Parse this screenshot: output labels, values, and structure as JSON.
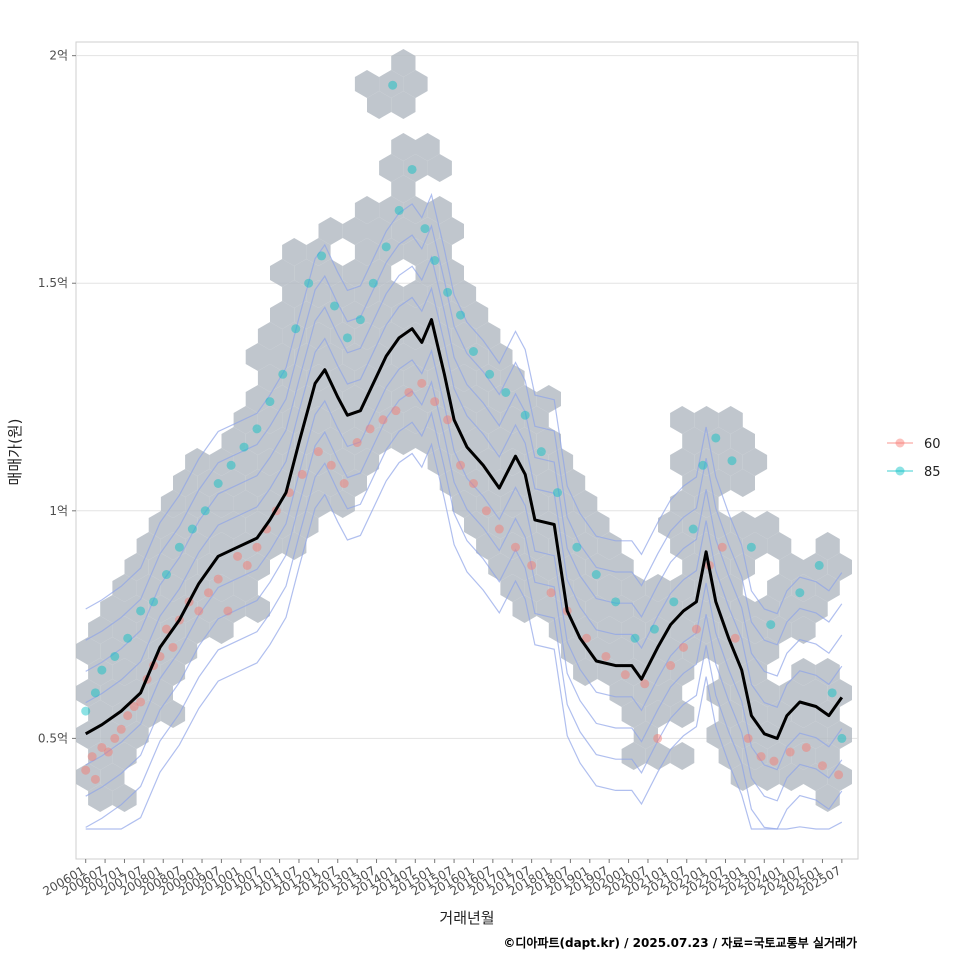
{
  "chart_data": {
    "type": "scatter",
    "xlabel": "거래년월",
    "ylabel": "매매가(원)",
    "caption": "©디아파트(dapt.kr) / 2025.07.23 / 자료=국토교통부 실거래가",
    "x_range": [
      "2005-10",
      "2025-12"
    ],
    "y_range_won": [
      23500000,
      203000000
    ],
    "y_ticks": [
      {
        "value": 50000000,
        "label": "0.5억"
      },
      {
        "value": 100000000,
        "label": "1억"
      },
      {
        "value": 150000000,
        "label": "1.5억"
      },
      {
        "value": 200000000,
        "label": "2억"
      }
    ],
    "x_tick_labels": [
      "200601",
      "200607",
      "200701",
      "200707",
      "200801",
      "200807",
      "200901",
      "200907",
      "201001",
      "201007",
      "201101",
      "201107",
      "201201",
      "201207",
      "201301",
      "201307",
      "201401",
      "201407",
      "201501",
      "201507",
      "201601",
      "201607",
      "201701",
      "201707",
      "201801",
      "201807",
      "201901",
      "201907",
      "202001",
      "202007",
      "202101",
      "202107",
      "202201",
      "202207",
      "202301",
      "202307",
      "202401",
      "202407",
      "202501",
      "202507"
    ],
    "grid": true,
    "legend_position": "right",
    "legend": [
      {
        "name": "60",
        "color": "#F8766D"
      },
      {
        "name": "85",
        "color": "#00BFC4"
      }
    ],
    "series": [
      {
        "name": "60",
        "color": "#F8766D",
        "points": [
          [
            "2006-01",
            43000000
          ],
          [
            "2006-03",
            46000000
          ],
          [
            "2006-04",
            41000000
          ],
          [
            "2006-06",
            48000000
          ],
          [
            "2006-08",
            47000000
          ],
          [
            "2006-10",
            50000000
          ],
          [
            "2006-12",
            52000000
          ],
          [
            "2007-02",
            55000000
          ],
          [
            "2007-04",
            57000000
          ],
          [
            "2007-06",
            58000000
          ],
          [
            "2007-08",
            63000000
          ],
          [
            "2007-10",
            66000000
          ],
          [
            "2007-12",
            68000000
          ],
          [
            "2008-02",
            74000000
          ],
          [
            "2008-04",
            70000000
          ],
          [
            "2008-06",
            76000000
          ],
          [
            "2008-09",
            80000000
          ],
          [
            "2008-12",
            78000000
          ],
          [
            "2009-03",
            82000000
          ],
          [
            "2009-06",
            85000000
          ],
          [
            "2009-09",
            78000000
          ],
          [
            "2009-12",
            90000000
          ],
          [
            "2010-03",
            88000000
          ],
          [
            "2010-06",
            92000000
          ],
          [
            "2010-09",
            96000000
          ],
          [
            "2010-12",
            100000000
          ],
          [
            "2011-04",
            104000000
          ],
          [
            "2011-08",
            108000000
          ],
          [
            "2012-01",
            113000000
          ],
          [
            "2012-05",
            110000000
          ],
          [
            "2012-09",
            106000000
          ],
          [
            "2013-01",
            115000000
          ],
          [
            "2013-05",
            118000000
          ],
          [
            "2013-09",
            120000000
          ],
          [
            "2014-01",
            122000000
          ],
          [
            "2014-05",
            126000000
          ],
          [
            "2014-09",
            128000000
          ],
          [
            "2015-01",
            124000000
          ],
          [
            "2015-05",
            120000000
          ],
          [
            "2015-09",
            110000000
          ],
          [
            "2016-01",
            106000000
          ],
          [
            "2016-05",
            100000000
          ],
          [
            "2016-09",
            96000000
          ],
          [
            "2017-02",
            92000000
          ],
          [
            "2017-07",
            88000000
          ],
          [
            "2018-01",
            82000000
          ],
          [
            "2018-06",
            78000000
          ],
          [
            "2018-12",
            72000000
          ],
          [
            "2019-06",
            68000000
          ],
          [
            "2019-12",
            64000000
          ],
          [
            "2020-06",
            62000000
          ],
          [
            "2020-10",
            50000000
          ],
          [
            "2021-02",
            66000000
          ],
          [
            "2021-06",
            70000000
          ],
          [
            "2021-10",
            74000000
          ],
          [
            "2022-02",
            88000000
          ],
          [
            "2022-06",
            92000000
          ],
          [
            "2022-10",
            72000000
          ],
          [
            "2023-02",
            50000000
          ],
          [
            "2023-06",
            46000000
          ],
          [
            "2023-10",
            45000000
          ],
          [
            "2024-03",
            47000000
          ],
          [
            "2024-08",
            48000000
          ],
          [
            "2025-01",
            44000000
          ],
          [
            "2025-06",
            42000000
          ]
        ]
      },
      {
        "name": "85",
        "color": "#00BFC4",
        "points": [
          [
            "2006-01",
            56000000
          ],
          [
            "2006-04",
            60000000
          ],
          [
            "2006-06",
            65000000
          ],
          [
            "2006-10",
            68000000
          ],
          [
            "2007-02",
            72000000
          ],
          [
            "2007-06",
            78000000
          ],
          [
            "2007-10",
            80000000
          ],
          [
            "2008-02",
            86000000
          ],
          [
            "2008-06",
            92000000
          ],
          [
            "2008-10",
            96000000
          ],
          [
            "2009-02",
            100000000
          ],
          [
            "2009-06",
            106000000
          ],
          [
            "2009-10",
            110000000
          ],
          [
            "2010-02",
            114000000
          ],
          [
            "2010-06",
            118000000
          ],
          [
            "2010-10",
            124000000
          ],
          [
            "2011-02",
            130000000
          ],
          [
            "2011-06",
            140000000
          ],
          [
            "2011-10",
            150000000
          ],
          [
            "2012-02",
            156000000
          ],
          [
            "2012-06",
            145000000
          ],
          [
            "2012-10",
            138000000
          ],
          [
            "2013-02",
            142000000
          ],
          [
            "2013-06",
            150000000
          ],
          [
            "2013-10",
            158000000
          ],
          [
            "2014-02",
            166000000
          ],
          [
            "2014-06",
            175000000
          ],
          [
            "2014-10",
            162000000
          ],
          [
            "2015-01",
            155000000
          ],
          [
            "2015-05",
            148000000
          ],
          [
            "2015-09",
            143000000
          ],
          [
            "2016-01",
            135000000
          ],
          [
            "2016-06",
            130000000
          ],
          [
            "2016-11",
            126000000
          ],
          [
            "2017-05",
            121000000
          ],
          [
            "2017-10",
            113000000
          ],
          [
            "2018-03",
            104000000
          ],
          [
            "2018-09",
            92000000
          ],
          [
            "2019-03",
            86000000
          ],
          [
            "2019-09",
            80000000
          ],
          [
            "2020-03",
            72000000
          ],
          [
            "2020-09",
            74000000
          ],
          [
            "2021-03",
            80000000
          ],
          [
            "2021-09",
            96000000
          ],
          [
            "2021-12",
            110000000
          ],
          [
            "2022-04",
            116000000
          ],
          [
            "2022-09",
            111000000
          ],
          [
            "2023-03",
            92000000
          ],
          [
            "2023-09",
            75000000
          ],
          [
            "2024-06",
            82000000
          ],
          [
            "2024-12",
            88000000
          ],
          [
            "2025-04",
            60000000
          ],
          [
            "2025-07",
            50000000
          ],
          [
            "2013-12",
            193500000
          ]
        ]
      }
    ],
    "trend_line": {
      "color": "#000000",
      "points": [
        [
          "2006-01",
          51000000
        ],
        [
          "2006-06",
          53000000
        ],
        [
          "2006-12",
          56000000
        ],
        [
          "2007-06",
          60000000
        ],
        [
          "2007-12",
          70000000
        ],
        [
          "2008-06",
          76000000
        ],
        [
          "2008-12",
          84000000
        ],
        [
          "2009-06",
          90000000
        ],
        [
          "2009-12",
          92000000
        ],
        [
          "2010-06",
          94000000
        ],
        [
          "2010-10",
          98000000
        ],
        [
          "2011-03",
          104000000
        ],
        [
          "2011-07",
          115000000
        ],
        [
          "2011-12",
          128000000
        ],
        [
          "2012-03",
          131000000
        ],
        [
          "2012-07",
          125000000
        ],
        [
          "2012-10",
          121000000
        ],
        [
          "2013-02",
          122000000
        ],
        [
          "2013-06",
          128000000
        ],
        [
          "2013-10",
          134000000
        ],
        [
          "2014-02",
          138000000
        ],
        [
          "2014-06",
          140000000
        ],
        [
          "2014-09",
          137000000
        ],
        [
          "2014-12",
          142000000
        ],
        [
          "2015-04",
          130000000
        ],
        [
          "2015-07",
          120000000
        ],
        [
          "2015-11",
          114000000
        ],
        [
          "2016-04",
          110000000
        ],
        [
          "2016-09",
          105000000
        ],
        [
          "2017-02",
          112000000
        ],
        [
          "2017-05",
          108000000
        ],
        [
          "2017-08",
          98000000
        ],
        [
          "2018-02",
          97000000
        ],
        [
          "2018-06",
          78000000
        ],
        [
          "2018-10",
          72000000
        ],
        [
          "2019-03",
          67000000
        ],
        [
          "2019-09",
          66000000
        ],
        [
          "2020-02",
          66000000
        ],
        [
          "2020-05",
          63000000
        ],
        [
          "2020-10",
          70000000
        ],
        [
          "2021-02",
          75000000
        ],
        [
          "2021-06",
          78000000
        ],
        [
          "2021-10",
          80000000
        ],
        [
          "2022-01",
          91000000
        ],
        [
          "2022-04",
          80000000
        ],
        [
          "2022-08",
          72000000
        ],
        [
          "2022-12",
          65000000
        ],
        [
          "2023-03",
          55000000
        ],
        [
          "2023-07",
          51000000
        ],
        [
          "2023-11",
          50000000
        ],
        [
          "2024-02",
          55000000
        ],
        [
          "2024-06",
          58000000
        ],
        [
          "2024-11",
          57000000
        ],
        [
          "2025-03",
          55000000
        ],
        [
          "2025-07",
          59000000
        ]
      ]
    },
    "density_contours": {
      "color": "#8EA4E8",
      "count": 9
    },
    "hexbin_density": {
      "color": "#B0B8C0",
      "present": true
    }
  }
}
